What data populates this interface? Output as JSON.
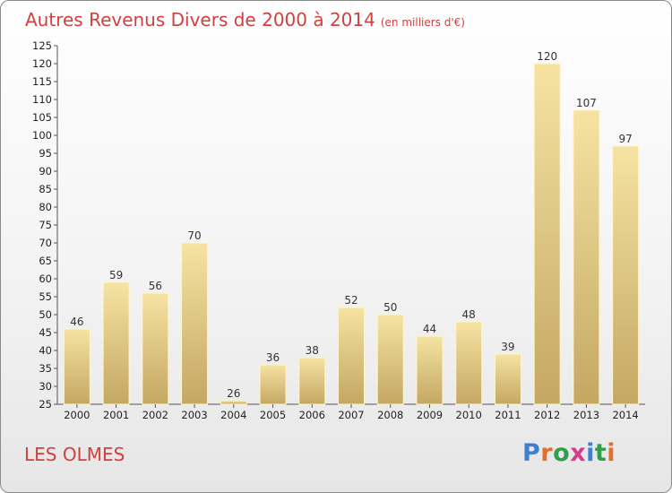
{
  "header": {
    "title": "Autres Revenus Divers de 2000 à 2014",
    "unit": "(en milliers d'€)"
  },
  "footer": {
    "commune": "LES OLMES",
    "logo_text": "Proxiti"
  },
  "colors": {
    "title": "#d0413e",
    "bar_light": "#f6e3a2",
    "bar_dark": "#c4a763",
    "logo_letters": [
      "#3f7fd0",
      "#e0702a",
      "#2f9f4a",
      "#d83a8a",
      "#3f7fd0",
      "#2f9f4a",
      "#e0702a"
    ]
  },
  "chart_data": {
    "type": "bar",
    "title": "Autres Revenus Divers de 2000 à 2014",
    "subtitle": "(en milliers d'€)",
    "categories": [
      "2000",
      "2001",
      "2002",
      "2003",
      "2004",
      "2005",
      "2006",
      "2007",
      "2008",
      "2009",
      "2010",
      "2011",
      "2012",
      "2013",
      "2014"
    ],
    "values": [
      46,
      59,
      56,
      70,
      26,
      36,
      38,
      52,
      50,
      44,
      48,
      39,
      120,
      107,
      97
    ],
    "ylim": [
      25,
      125
    ],
    "ytick_step": 5,
    "grid": false,
    "legend": "none"
  }
}
